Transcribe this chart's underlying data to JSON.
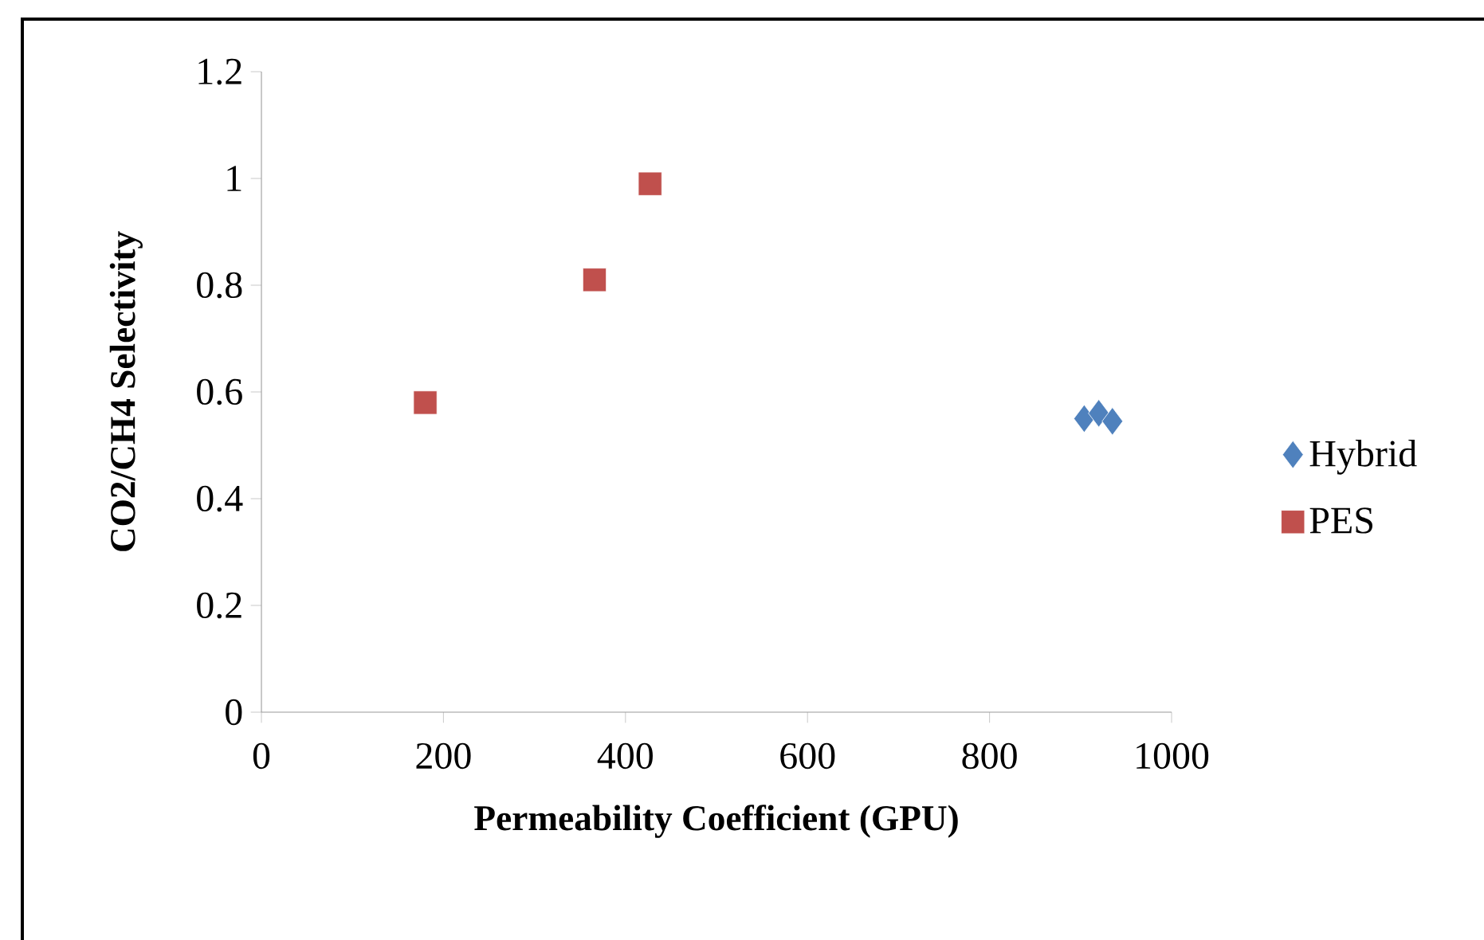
{
  "chart_data": {
    "type": "scatter",
    "xlabel": "Permeability Coefficient (GPU)",
    "ylabel": "CO2/CH4 Selectivity",
    "xlim": [
      0,
      1000
    ],
    "xticks": [
      0,
      200,
      400,
      600,
      800,
      1000
    ],
    "ylim": [
      0,
      1.2
    ],
    "yticks": [
      0,
      {
        "value": 0.2,
        "label": "0.2"
      },
      {
        "value": 0.4,
        "label": "0.4"
      },
      {
        "value": 0.6,
        "label": "0.6"
      },
      {
        "value": 0.8,
        "label": "0.8"
      },
      1,
      {
        "value": 1.2,
        "label": "1.2"
      }
    ],
    "legend": "right",
    "series": [
      {
        "name": "Hybrid",
        "color": "#4f81bd",
        "marker": "diamond",
        "x": [
          904,
          920,
          935
        ],
        "values": [
          0.55,
          0.56,
          0.545
        ]
      },
      {
        "name": "PES",
        "color": "#c0504d",
        "marker": "square",
        "x": [
          180,
          366,
          427
        ],
        "values": [
          0.58,
          0.81,
          0.99
        ]
      }
    ]
  }
}
